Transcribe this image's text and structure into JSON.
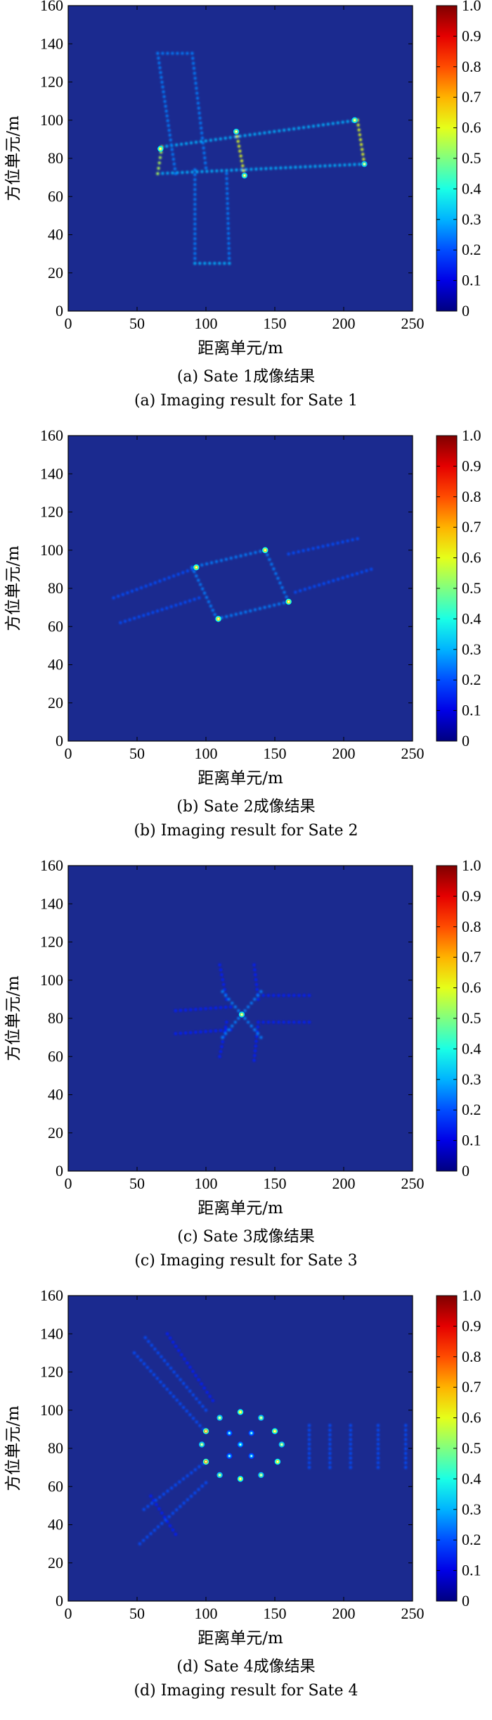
{
  "axes": {
    "xlabel": "距离单元/m",
    "ylabel": "方位单元/m",
    "xticks": [
      "0",
      "50",
      "100",
      "150",
      "200",
      "250"
    ],
    "yticks": [
      "0",
      "20",
      "40",
      "60",
      "80",
      "100",
      "120",
      "140",
      "160"
    ],
    "colorbar_ticks": [
      "0",
      "0.1",
      "0.2",
      "0.3",
      "0.4",
      "0.5",
      "0.6",
      "0.7",
      "0.8",
      "0.9",
      "1.0"
    ]
  },
  "panels": [
    {
      "caption_cn": "(a) Sate 1成像结果",
      "caption_en": "(a) Imaging result for Sate 1"
    },
    {
      "caption_cn": "(b) Sate 2成像结果",
      "caption_en": "(b) Imaging result for Sate 2"
    },
    {
      "caption_cn": "(c) Sate 3成像结果",
      "caption_en": "(c) Imaging result for Sate 3"
    },
    {
      "caption_cn": "(d) Sate 4成像结果",
      "caption_en": "(d) Imaging result for Sate 4"
    }
  ],
  "colors": {
    "background": "#1b2a8f",
    "colormap": "jet"
  },
  "chart_data": [
    {
      "type": "heatmap",
      "title": "(a) Sate 1成像结果",
      "xlabel": "距离单元/m",
      "ylabel": "方位单元/m",
      "xlim": [
        0,
        250
      ],
      "ylim": [
        0,
        160
      ],
      "clim": [
        0,
        1.0
      ],
      "segments": [
        {
          "from": [
            65,
            72
          ],
          "to": [
            215,
            77
          ],
          "intensity": 0.3
        },
        {
          "from": [
            68,
            86
          ],
          "to": [
            210,
            100
          ],
          "intensity": 0.3
        },
        {
          "from": [
            65,
            72
          ],
          "to": [
            68,
            86
          ],
          "intensity": 0.55
        },
        {
          "from": [
            122,
            94
          ],
          "to": [
            128,
            71
          ],
          "intensity": 0.6
        },
        {
          "from": [
            210,
            100
          ],
          "to": [
            215,
            77
          ],
          "intensity": 0.6
        },
        {
          "from": [
            65,
            135
          ],
          "to": [
            78,
            72
          ],
          "intensity": 0.25
        },
        {
          "from": [
            90,
            135
          ],
          "to": [
            100,
            75
          ],
          "intensity": 0.25
        },
        {
          "from": [
            65,
            135
          ],
          "to": [
            90,
            135
          ],
          "intensity": 0.25
        },
        {
          "from": [
            92,
            74
          ],
          "to": [
            92,
            25
          ],
          "intensity": 0.25
        },
        {
          "from": [
            115,
            72
          ],
          "to": [
            117,
            25
          ],
          "intensity": 0.25
        },
        {
          "from": [
            92,
            25
          ],
          "to": [
            117,
            25
          ],
          "intensity": 0.3
        }
      ],
      "points": [
        {
          "x": 67,
          "y": 85,
          "v": 0.6
        },
        {
          "x": 122,
          "y": 94,
          "v": 0.55
        },
        {
          "x": 128,
          "y": 71,
          "v": 0.55
        },
        {
          "x": 208,
          "y": 100,
          "v": 0.55
        },
        {
          "x": 215,
          "y": 77,
          "v": 0.5
        }
      ]
    },
    {
      "type": "heatmap",
      "title": "(b) Sate 2成像结果",
      "xlabel": "距离单元/m",
      "ylabel": "方位单元/m",
      "xlim": [
        0,
        250
      ],
      "ylim": [
        0,
        160
      ],
      "clim": [
        0,
        1.0
      ],
      "segments": [
        {
          "from": [
            33,
            75
          ],
          "to": [
            90,
            90
          ],
          "intensity": 0.2
        },
        {
          "from": [
            38,
            62
          ],
          "to": [
            95,
            75
          ],
          "intensity": 0.2
        },
        {
          "from": [
            90,
            91
          ],
          "to": [
            143,
            100
          ],
          "intensity": 0.25
        },
        {
          "from": [
            108,
            64
          ],
          "to": [
            160,
            73
          ],
          "intensity": 0.25
        },
        {
          "from": [
            90,
            91
          ],
          "to": [
            108,
            64
          ],
          "intensity": 0.25
        },
        {
          "from": [
            143,
            100
          ],
          "to": [
            160,
            73
          ],
          "intensity": 0.25
        },
        {
          "from": [
            160,
            98
          ],
          "to": [
            210,
            106
          ],
          "intensity": 0.2
        },
        {
          "from": [
            165,
            78
          ],
          "to": [
            220,
            90
          ],
          "intensity": 0.2
        }
      ],
      "points": [
        {
          "x": 93,
          "y": 91,
          "v": 0.65
        },
        {
          "x": 143,
          "y": 100,
          "v": 0.65
        },
        {
          "x": 109,
          "y": 64,
          "v": 0.65
        },
        {
          "x": 160,
          "y": 73,
          "v": 0.65
        }
      ]
    },
    {
      "type": "heatmap",
      "title": "(c) Sate 3成像结果",
      "xlabel": "距离单元/m",
      "ylabel": "方位单元/m",
      "xlim": [
        0,
        250
      ],
      "ylim": [
        0,
        160
      ],
      "clim": [
        0,
        1.0
      ],
      "segments": [
        {
          "from": [
            78,
            84
          ],
          "to": [
            118,
            86
          ],
          "intensity": 0.15
        },
        {
          "from": [
            78,
            72
          ],
          "to": [
            118,
            74
          ],
          "intensity": 0.15
        },
        {
          "from": [
            138,
            92
          ],
          "to": [
            175,
            92
          ],
          "intensity": 0.15
        },
        {
          "from": [
            138,
            78
          ],
          "to": [
            175,
            78
          ],
          "intensity": 0.15
        },
        {
          "from": [
            110,
            108
          ],
          "to": [
            115,
            90
          ],
          "intensity": 0.15
        },
        {
          "from": [
            135,
            108
          ],
          "to": [
            138,
            90
          ],
          "intensity": 0.15
        },
        {
          "from": [
            110,
            60
          ],
          "to": [
            115,
            78
          ],
          "intensity": 0.15
        },
        {
          "from": [
            135,
            58
          ],
          "to": [
            138,
            78
          ],
          "intensity": 0.15
        },
        {
          "from": [
            112,
            70
          ],
          "to": [
            140,
            94
          ],
          "intensity": 0.25
        },
        {
          "from": [
            112,
            94
          ],
          "to": [
            140,
            70
          ],
          "intensity": 0.25
        }
      ],
      "points": [
        {
          "x": 126,
          "y": 82,
          "v": 0.55
        }
      ]
    },
    {
      "type": "heatmap",
      "title": "(d) Sate 4成像结果",
      "xlabel": "距离单元/m",
      "ylabel": "方位单元/m",
      "xlim": [
        0,
        250
      ],
      "ylim": [
        0,
        160
      ],
      "clim": [
        0,
        1.0
      ],
      "segments": [
        {
          "from": [
            48,
            130
          ],
          "to": [
            98,
            90
          ],
          "intensity": 0.2
        },
        {
          "from": [
            56,
            138
          ],
          "to": [
            100,
            100
          ],
          "intensity": 0.2
        },
        {
          "from": [
            72,
            140
          ],
          "to": [
            105,
            105
          ],
          "intensity": 0.15
        },
        {
          "from": [
            55,
            48
          ],
          "to": [
            98,
            72
          ],
          "intensity": 0.2
        },
        {
          "from": [
            52,
            30
          ],
          "to": [
            100,
            62
          ],
          "intensity": 0.2
        },
        {
          "from": [
            60,
            55
          ],
          "to": [
            78,
            35
          ],
          "intensity": 0.15
        },
        {
          "from": [
            175,
            70
          ],
          "to": [
            175,
            92
          ],
          "intensity": 0.2
        },
        {
          "from": [
            190,
            70
          ],
          "to": [
            190,
            92
          ],
          "intensity": 0.2
        },
        {
          "from": [
            205,
            70
          ],
          "to": [
            205,
            92
          ],
          "intensity": 0.2
        },
        {
          "from": [
            225,
            70
          ],
          "to": [
            225,
            92
          ],
          "intensity": 0.2
        },
        {
          "from": [
            245,
            70
          ],
          "to": [
            245,
            92
          ],
          "intensity": 0.2
        }
      ],
      "points": [
        {
          "x": 125,
          "y": 99,
          "v": 0.6
        },
        {
          "x": 140,
          "y": 96,
          "v": 0.5
        },
        {
          "x": 150,
          "y": 89,
          "v": 0.6
        },
        {
          "x": 155,
          "y": 82,
          "v": 0.5
        },
        {
          "x": 152,
          "y": 73,
          "v": 0.6
        },
        {
          "x": 140,
          "y": 66,
          "v": 0.5
        },
        {
          "x": 125,
          "y": 64,
          "v": 0.6
        },
        {
          "x": 110,
          "y": 66,
          "v": 0.5
        },
        {
          "x": 100,
          "y": 73,
          "v": 0.7
        },
        {
          "x": 97,
          "y": 82,
          "v": 0.5
        },
        {
          "x": 100,
          "y": 89,
          "v": 0.7
        },
        {
          "x": 110,
          "y": 96,
          "v": 0.5
        },
        {
          "x": 117,
          "y": 88,
          "v": 0.3
        },
        {
          "x": 133,
          "y": 88,
          "v": 0.3
        },
        {
          "x": 117,
          "y": 76,
          "v": 0.3
        },
        {
          "x": 133,
          "y": 76,
          "v": 0.3
        },
        {
          "x": 125,
          "y": 82,
          "v": 0.35
        }
      ]
    }
  ]
}
